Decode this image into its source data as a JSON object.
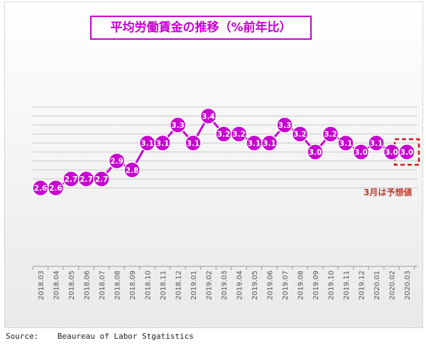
{
  "chart_data": {
    "type": "line",
    "title": "平均労働賃金の推移（%前年比）",
    "x": [
      "2018.03",
      "2018.04",
      "2018.05",
      "2018.06",
      "2018.07",
      "2018.08",
      "2018.09",
      "2018.10",
      "2018.11",
      "2018.12",
      "2019.01",
      "2019.02",
      "2019.03",
      "2019.04",
      "2019.05",
      "2019.06",
      "2019.07",
      "2019.08",
      "2019.09",
      "2019.10",
      "2019.11",
      "2019.12",
      "2020.01",
      "2020.02",
      "2020.03"
    ],
    "values": [
      2.6,
      2.6,
      2.7,
      2.7,
      2.7,
      2.9,
      2.8,
      3.1,
      3.1,
      3.3,
      3.1,
      3.4,
      3.2,
      3.2,
      3.1,
      3.1,
      3.3,
      3.2,
      3.0,
      3.2,
      3.1,
      3.0,
      3.1,
      3.0,
      3.0
    ],
    "data_labels": [
      "2.6",
      "2.6",
      "2.7",
      "2.7",
      "2.7",
      "2.9",
      "2.8",
      "3.1",
      "3.1",
      "3.3",
      "3.1",
      "3.4",
      "3.2",
      "3.2",
      "3.1",
      "3.1",
      "3.3",
      "3.2",
      "3.0",
      "3.2",
      "3.1",
      "3.0",
      "3.1",
      "3.0",
      "3.0"
    ],
    "ylim": [
      2.5,
      3.5
    ],
    "grid": true,
    "annotation": "3月は予想値",
    "forecast_index": 24,
    "line_color": "#c800d2",
    "annotation_color": "#c0392b"
  },
  "source": "Source:    Beaureau of Labor Stgatistics"
}
